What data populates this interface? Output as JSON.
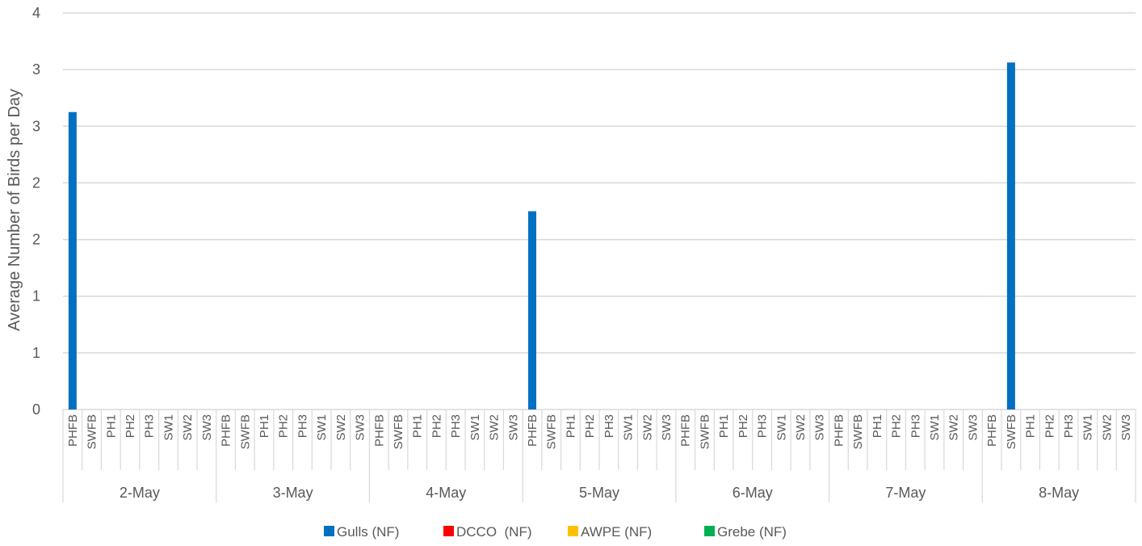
{
  "chart_data": {
    "type": "bar",
    "ylabel": "Average Number of Birds per Day",
    "ylim": [
      0,
      4
    ],
    "yticks": [
      "0",
      "1",
      "1",
      "2",
      "2",
      "3",
      "3",
      "4"
    ],
    "grid": true,
    "legend_position": "bottom",
    "groups": [
      "2-May",
      "3-May",
      "4-May",
      "5-May",
      "6-May",
      "7-May",
      "8-May"
    ],
    "sites": [
      "PHFB",
      "SWFB",
      "PH1",
      "PH2",
      "PH3",
      "SW1",
      "SW2",
      "SW3"
    ],
    "series": [
      {
        "name": "Gulls (NF)",
        "color": "#0070c0",
        "values": [
          [
            3,
            0,
            0,
            0,
            0,
            0,
            0,
            0
          ],
          [
            0,
            0,
            0,
            0,
            0,
            0,
            0,
            0
          ],
          [
            0,
            0,
            0,
            0,
            0,
            0,
            0,
            0
          ],
          [
            2,
            0,
            0,
            0,
            0,
            0,
            0,
            0
          ],
          [
            0,
            0,
            0,
            0,
            0,
            0,
            0,
            0
          ],
          [
            0,
            0,
            0,
            0,
            0,
            0,
            0,
            0
          ],
          [
            0,
            3.5,
            0,
            0,
            0,
            0,
            0,
            0
          ]
        ]
      },
      {
        "name": "DCCO  (NF)",
        "color": "#ff0000",
        "values": []
      },
      {
        "name": "AWPE (NF)",
        "color": "#ffc000",
        "values": []
      },
      {
        "name": "Grebe (NF)",
        "color": "#00b050",
        "values": []
      }
    ]
  }
}
